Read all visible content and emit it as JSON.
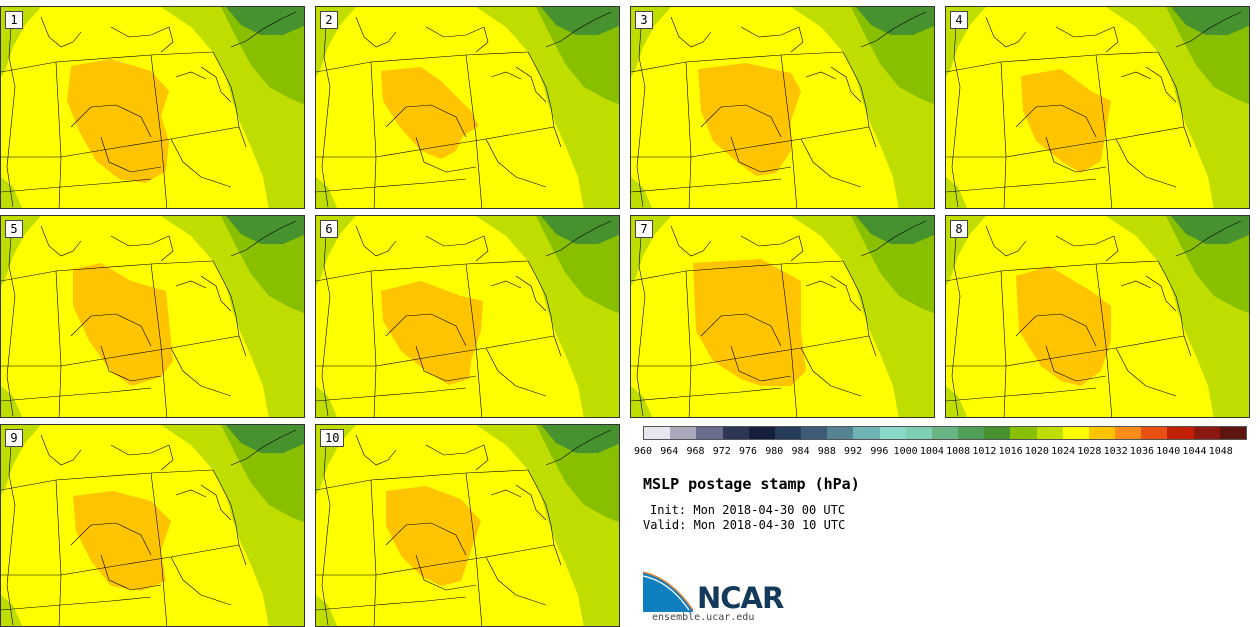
{
  "panels": [
    {
      "label": "1"
    },
    {
      "label": "2"
    },
    {
      "label": "3"
    },
    {
      "label": "4"
    },
    {
      "label": "5"
    },
    {
      "label": "6"
    },
    {
      "label": "7"
    },
    {
      "label": "8"
    },
    {
      "label": "9"
    },
    {
      "label": "10"
    }
  ],
  "legend": {
    "colors": [
      "#e6e6ef",
      "#a9a9bb",
      "#6a6d8b",
      "#2d3656",
      "#131f3b",
      "#253d5b",
      "#3d5c78",
      "#548391",
      "#6fb4b4",
      "#8ad8c8",
      "#7fd0b2",
      "#6bb584",
      "#4f9f58",
      "#47912f",
      "#88c000",
      "#c0dd00",
      "#ffff00",
      "#ffc400",
      "#ff8c1a",
      "#ea5010",
      "#c02000",
      "#8c1812",
      "#5e150f"
    ],
    "ticks": [
      "960",
      "964",
      "968",
      "972",
      "976",
      "980",
      "984",
      "988",
      "992",
      "996",
      "1000",
      "1004",
      "1008",
      "1012",
      "1016",
      "1020",
      "1024",
      "1028",
      "1032",
      "1036",
      "1040",
      "1044",
      "1048"
    ]
  },
  "title": "MSLP postage stamp (hPa)",
  "init": "Init: Mon 2018-04-30 00 UTC",
  "valid": "Valid: Mon 2018-04-30 10 UTC",
  "logo_text": "NCAR",
  "url": "ensemble.ucar.edu"
}
